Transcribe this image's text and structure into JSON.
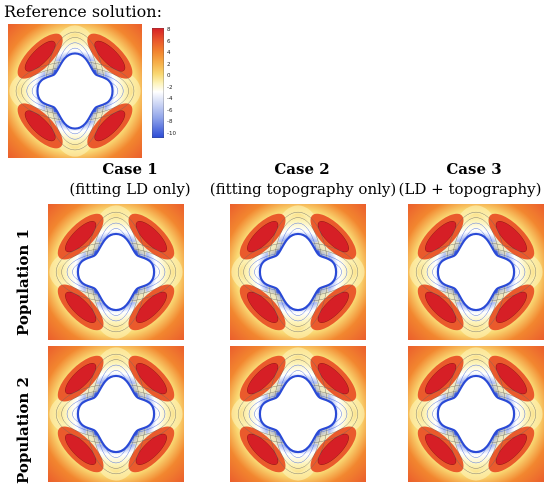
{
  "reference": {
    "title": "Reference solution:"
  },
  "colorbar": {
    "ticks": [
      "8",
      "6",
      "4",
      "2",
      "0",
      "-2",
      "-4",
      "-6",
      "-8",
      "-10"
    ],
    "colors": [
      "#d61f26",
      "#ea5a2c",
      "#f2862f",
      "#f6b04a",
      "#f9d873",
      "#fdf3b8",
      "#ffffff",
      "#c8d2f4",
      "#8fa3ea",
      "#4c6fe0",
      "#2a4ad6"
    ]
  },
  "cases": [
    {
      "title": "Case 1",
      "subtitle": "(fitting LD only)"
    },
    {
      "title": "Case 2",
      "subtitle": "(fitting topography only)"
    },
    {
      "title": "Case 3",
      "subtitle": "(LD + topography)"
    }
  ],
  "populations": [
    {
      "label": "Population 1"
    },
    {
      "label": "Population 2"
    }
  ]
}
